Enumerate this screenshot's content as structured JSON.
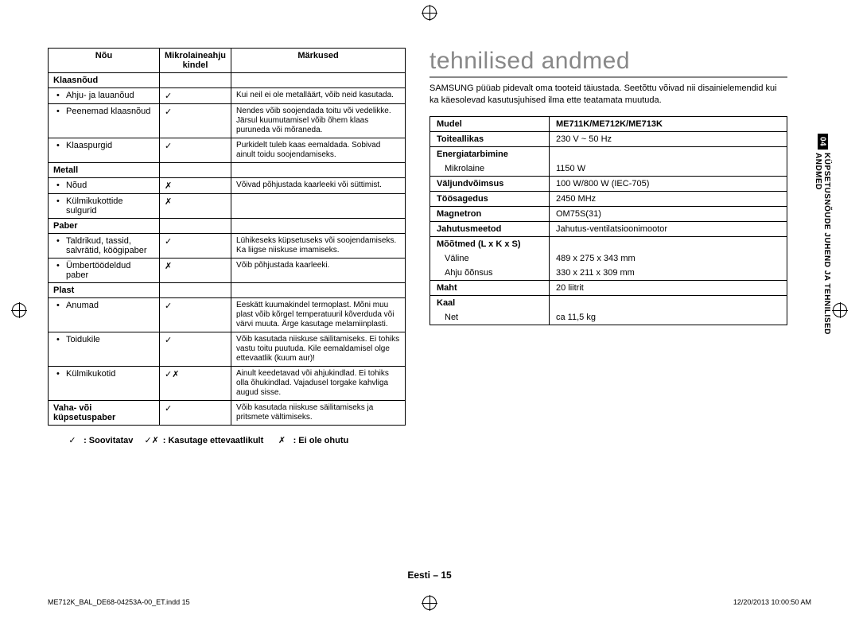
{
  "reg": true,
  "vessel_table": {
    "headers": [
      "Nõu",
      "Mikrolaineahju kindel",
      "Märkused"
    ],
    "groups": [
      {
        "category": "Klaasnõud",
        "rows": [
          {
            "item": "Ahju- ja lauanõud",
            "mark": "chk",
            "note": "Kui neil ei ole metalläärt, võib neid kasutada."
          },
          {
            "item": "Peenemad klaasnõud",
            "mark": "chk",
            "note": "Nendes võib soojendada toitu või vedelikke. Järsul kuumutamisel võib õhem klaas puruneda või mõraneda."
          },
          {
            "item": "Klaaspurgid",
            "mark": "chk",
            "note": "Purkidelt tuleb kaas eemaldada. Sobivad ainult toidu soojendamiseks."
          }
        ]
      },
      {
        "category": "Metall",
        "rows": [
          {
            "item": "Nõud",
            "mark": "cross",
            "note": "Võivad põhjustada kaarleeki või süttimist."
          },
          {
            "item": "Külmikukottide sulgurid",
            "mark": "cross",
            "note": ""
          }
        ]
      },
      {
        "category": "Paber",
        "rows": [
          {
            "item": "Taldrikud, tassid, salvrätid, köögipaber",
            "mark": "chk",
            "note": "Lühikeseks küpsetuseks või soojendamiseks. Ka liigse niiskuse imamiseks."
          },
          {
            "item": "Ümbertöödeldud paber",
            "mark": "cross",
            "note": "Võib põhjustada kaarleeki."
          }
        ]
      },
      {
        "category": "Plast",
        "rows": [
          {
            "item": "Anumad",
            "mark": "chk",
            "note": "Eeskätt kuumakindel termoplast. Mõni muu plast võib kõrgel temperatuuril kõverduda või värvi muuta. Ärge kasutage melamiinplasti."
          },
          {
            "item": "Toidukile",
            "mark": "chk",
            "note": "Võib kasutada niiskuse säilitamiseks. Ei tohiks vastu toitu puutuda. Kile eemaldamisel olge ettevaatlik (kuum aur)!"
          },
          {
            "item": "Külmikukotid",
            "mark": "chkx",
            "note": "Ainult keedetavad või ahjukindlad. Ei tohiks olla õhukindlad. Vajadusel torgake kahvliga augud sisse."
          }
        ]
      },
      {
        "category": "Vaha- või küpsetuspaber",
        "single_mark": "chk",
        "single_note": "Võib kasutada niiskuse säilitamiseks ja pritsmete vältimiseks."
      }
    ]
  },
  "legend": {
    "rec_sym": "chk",
    "rec": ": Soovitatav",
    "care_sym": "chkx",
    "care": ": Kasutage ettevaatlikult",
    "unsafe_sym": "cross",
    "unsafe": ": Ei ole ohutu"
  },
  "heading": "tehnilised andmed",
  "intro": "SAMSUNG püüab pidevalt oma tooteid täiustada. Seetõttu võivad nii disainielemendid kui ka käesolevad kasutusjuhised ilma ette teatamata muutuda.",
  "spec_table": {
    "model_label": "Mudel",
    "model_value": "ME711K/ME712K/ME713K",
    "rows": [
      {
        "label": "Toiteallikas",
        "value": "230 V ~ 50 Hz"
      },
      {
        "label": "Energiatarbimine",
        "sub": {
          "sublabel": "Mikrolaine",
          "value": "1150 W"
        }
      },
      {
        "label": "Väljundvõimsus",
        "value": "100 W/800 W (IEC-705)"
      },
      {
        "label": "Töösagedus",
        "value": "2450 MHz"
      },
      {
        "label": "Magnetron",
        "value": "OM75S(31)"
      },
      {
        "label": "Jahutusmeetod",
        "value": "Jahutus-ventilatsioonimootor"
      },
      {
        "label": "Mõõtmed (L x K x S)",
        "sub2": [
          {
            "sublabel": "Väline",
            "value": "489 x 275 x 343 mm"
          },
          {
            "sublabel": "Ahju õõnsus",
            "value": "330 x 211 x 309 mm"
          }
        ]
      },
      {
        "label": "Maht",
        "value": "20 liitrit"
      },
      {
        "label": "Kaal",
        "sub": {
          "sublabel": "Net",
          "value": "ca 11,5 kg"
        }
      }
    ]
  },
  "side_tab": {
    "num": "04",
    "text": "KÜPSETUSNÕUDE JUHEND JA TEHNILISED ANDMED"
  },
  "footer": {
    "page": "Eesti – 15",
    "left": "ME712K_BAL_DE68-04253A-00_ET.indd   15",
    "right": "12/20/2013   10:00:50 AM"
  }
}
